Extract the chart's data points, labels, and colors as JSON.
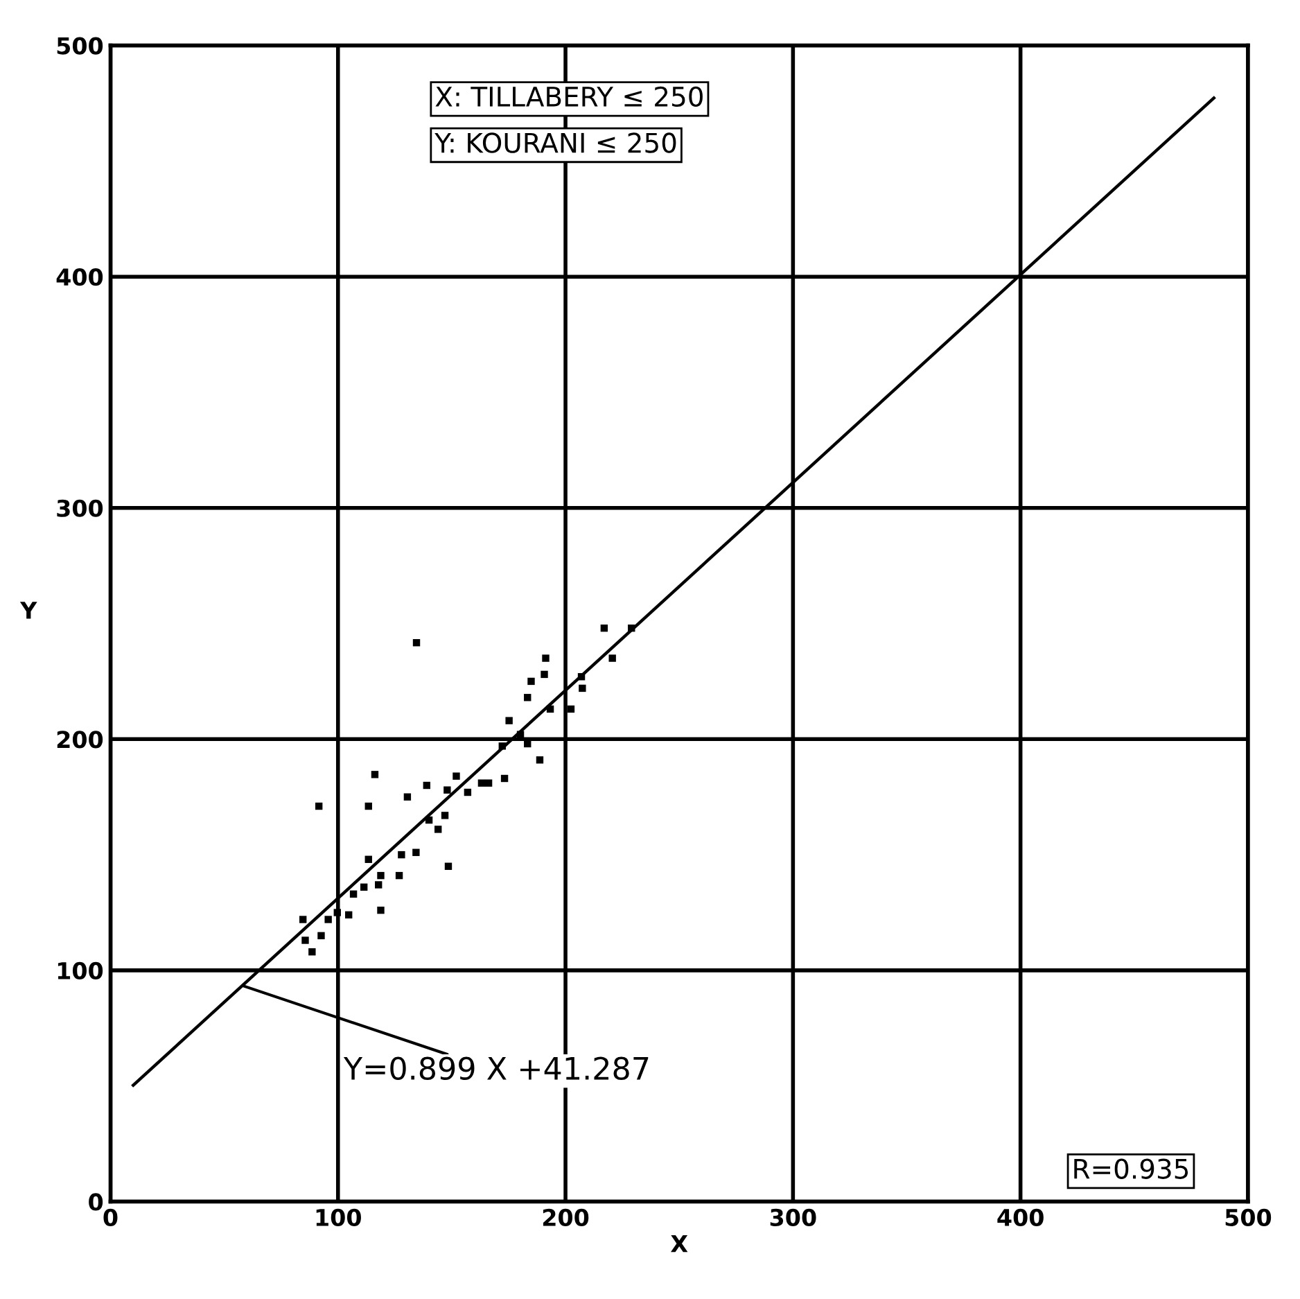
{
  "chart_data": {
    "type": "scatter",
    "xlabel": "X",
    "ylabel": "Y",
    "xlim": [
      0,
      500
    ],
    "ylim": [
      0,
      500
    ],
    "xticks": [
      0,
      100,
      200,
      300,
      400,
      500
    ],
    "yticks": [
      0,
      100,
      200,
      300,
      400,
      500
    ],
    "grid": true,
    "legend": false,
    "series": [
      {
        "marker": "square",
        "color": "#000000",
        "x": [
          134.5,
          217,
          229,
          220.6,
          191.3,
          190.7,
          184.9,
          183.3,
          207,
          207.4,
          202.4,
          193.3,
          175.2,
          180.2,
          172.2,
          183.3,
          188.7,
          173.2,
          166.2,
          163.1,
          152,
          148,
          157,
          139,
          130.5,
          116.2,
          113.4,
          91.6,
          147,
          144,
          140,
          134.3,
          127.9,
          113.4,
          148.5,
          126.9,
          118.8,
          117.8,
          111.4,
          106.8,
          118.8,
          104.7,
          99.7,
          95.7,
          84.6,
          85.6,
          92.6,
          88.6
        ],
        "values": [
          241.7,
          248,
          248,
          235,
          235,
          228,
          225,
          218,
          227,
          222,
          213,
          213,
          208,
          202,
          197,
          198,
          191,
          183,
          181,
          181,
          184,
          178,
          177,
          180,
          175,
          184.7,
          171,
          171,
          167,
          161,
          165,
          151,
          150,
          148,
          145,
          141,
          141,
          137,
          136,
          133,
          126,
          124,
          125,
          122,
          122,
          113,
          115,
          108
        ]
      },
      {
        "type": "line",
        "color": "#000000",
        "x": [
          10,
          485
        ],
        "values": [
          50.3,
          477.3
        ]
      }
    ],
    "annotations": [
      "X: TILLABERY ≤ 250",
      "Y: KOURANI ≤ 250",
      {
        "text": "Y=0.899 X +41.287",
        "x": 58,
        "y": 93.4
      },
      "R=0.935"
    ]
  }
}
